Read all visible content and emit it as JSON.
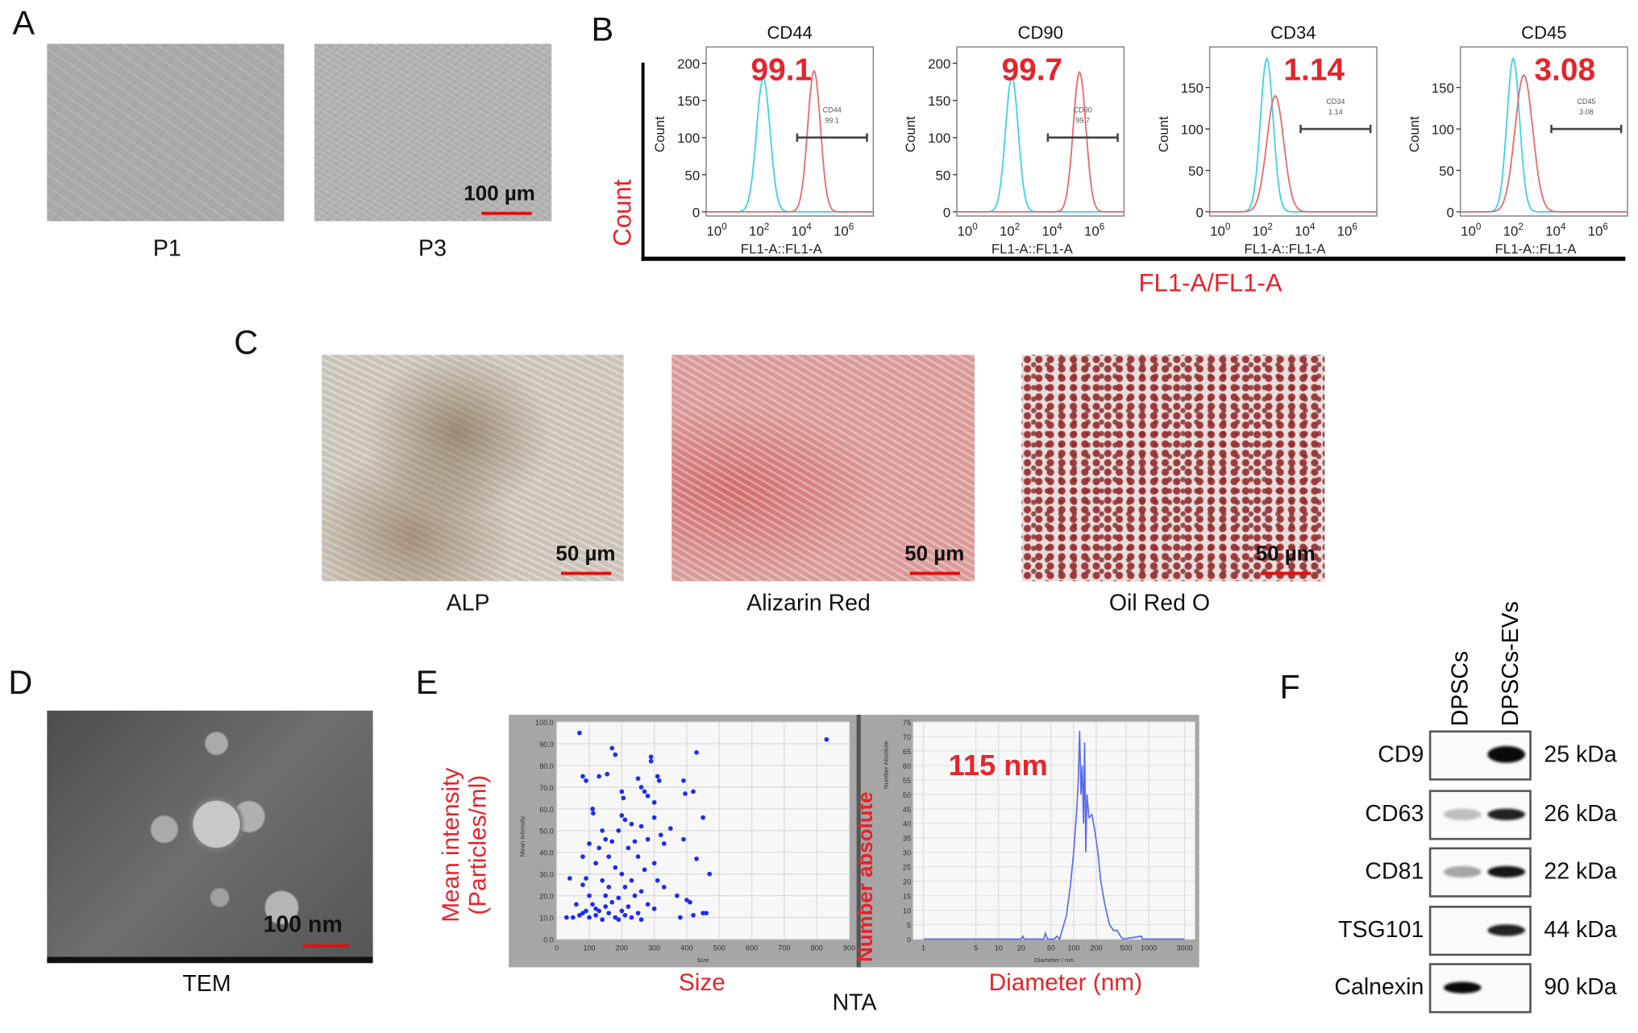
{
  "panels": {
    "A": {
      "label": "A",
      "images": [
        {
          "caption": "P1"
        },
        {
          "caption": "P3"
        }
      ],
      "scale_bar": "100 µm"
    },
    "B": {
      "label": "B",
      "axis_y": "Count",
      "axis_x": "FL1-A/FL1-A"
    },
    "C": {
      "label": "C",
      "images": [
        {
          "caption": "ALP",
          "scale_bar": "50 µm"
        },
        {
          "caption": "Alizarin Red",
          "scale_bar": "50 µm"
        },
        {
          "caption": "Oil Red O",
          "scale_bar": "50 µm"
        }
      ]
    },
    "D": {
      "label": "D",
      "caption": "TEM",
      "scale_bar": "100 nm"
    },
    "E": {
      "label": "E",
      "caption": "NTA",
      "left_ylabel": "Mean intensity",
      "left_ylabel2": "(Particles/ml)",
      "left_xlabel": "Size",
      "right_ylabel": "Number absolute",
      "right_xlabel": "Diameter (nm)",
      "peak_annotation": "115 nm"
    },
    "F": {
      "label": "F",
      "lanes": [
        "DPSCs",
        "DPSCs-EVs"
      ],
      "rows": [
        {
          "protein": "CD9",
          "kda": "25 kDa",
          "intensity": [
            0.0,
            1.0
          ]
        },
        {
          "protein": "CD63",
          "kda": "26 kDa",
          "intensity": [
            0.25,
            0.9
          ]
        },
        {
          "protein": "CD81",
          "kda": "22 kDa",
          "intensity": [
            0.35,
            0.95
          ]
        },
        {
          "protein": "TSG101",
          "kda": "44 kDa",
          "intensity": [
            0.0,
            0.9
          ]
        },
        {
          "protein": "Calnexin",
          "kda": "90 kDa",
          "intensity": [
            1.0,
            0.0
          ]
        }
      ]
    }
  },
  "chart_data": [
    {
      "type": "line",
      "title": "CD44",
      "xlabel": "FL1-A::FL1-A",
      "ylabel": "Count",
      "xscale": "log",
      "xticks": [
        "10^0",
        "10^2",
        "10^4",
        "10^6"
      ],
      "xtick_exp": [
        0,
        2,
        4,
        6
      ],
      "yticks": [
        0,
        50,
        100,
        150,
        200
      ],
      "ylim": [
        0,
        222
      ],
      "percent_label": "99.1",
      "gate_label": "CD44",
      "gate_value": "99.1",
      "gate_log10": [
        3.8,
        7.1
      ],
      "gate_count": 100,
      "series": [
        {
          "name": "isotype",
          "color": "#3fd0e8",
          "peak_log10": 2.2,
          "peak_count": 180,
          "sd_log10": 0.32
        },
        {
          "name": "stained",
          "color": "#e86a6a",
          "peak_log10": 4.6,
          "peak_count": 190,
          "sd_log10": 0.3
        }
      ]
    },
    {
      "type": "line",
      "title": "CD90",
      "xlabel": "FL1-A::FL1-A",
      "ylabel": "Count",
      "xscale": "log",
      "xticks": [
        "10^0",
        "10^2",
        "10^4",
        "10^6"
      ],
      "xtick_exp": [
        0,
        2,
        4,
        6
      ],
      "yticks": [
        0,
        50,
        100,
        150,
        200
      ],
      "ylim": [
        0,
        222
      ],
      "percent_label": "99.7",
      "gate_label": "CD90",
      "gate_value": "99.7",
      "gate_log10": [
        3.8,
        7.1
      ],
      "gate_count": 100,
      "series": [
        {
          "name": "isotype",
          "color": "#3fd0e8",
          "peak_log10": 2.1,
          "peak_count": 182,
          "sd_log10": 0.3
        },
        {
          "name": "stained",
          "color": "#e86a6a",
          "peak_log10": 5.3,
          "peak_count": 188,
          "sd_log10": 0.3
        }
      ]
    },
    {
      "type": "line",
      "title": "CD34",
      "xlabel": "FL1-A::FL1-A",
      "ylabel": "Count",
      "xscale": "log",
      "xticks": [
        "10^0",
        "10^2",
        "10^4",
        "10^6"
      ],
      "xtick_exp": [
        0,
        2,
        4,
        6
      ],
      "yticks": [
        0,
        50,
        100,
        150
      ],
      "ylim": [
        0,
        199
      ],
      "percent_label": "1.14",
      "gate_label": "CD34",
      "gate_value": "1.14",
      "gate_log10": [
        3.8,
        7.1
      ],
      "gate_count": 100,
      "series": [
        {
          "name": "isotype",
          "color": "#3fd0e8",
          "peak_log10": 2.2,
          "peak_count": 185,
          "sd_log10": 0.3
        },
        {
          "name": "stained",
          "color": "#e86a6a",
          "peak_log10": 2.6,
          "peak_count": 140,
          "sd_log10": 0.4
        }
      ]
    },
    {
      "type": "line",
      "title": "CD45",
      "xlabel": "FL1-A::FL1-A",
      "ylabel": "Count",
      "xscale": "log",
      "xticks": [
        "10^0",
        "10^2",
        "10^4",
        "10^6"
      ],
      "xtick_exp": [
        0,
        2,
        4,
        6
      ],
      "yticks": [
        0,
        50,
        100,
        150
      ],
      "ylim": [
        0,
        199
      ],
      "percent_label": "3.08",
      "gate_label": "CD45",
      "gate_value": "3.08",
      "gate_log10": [
        3.8,
        7.1
      ],
      "gate_count": 100,
      "series": [
        {
          "name": "isotype",
          "color": "#3fd0e8",
          "peak_log10": 2.0,
          "peak_count": 185,
          "sd_log10": 0.3
        },
        {
          "name": "stained",
          "color": "#e86a6a",
          "peak_log10": 2.5,
          "peak_count": 165,
          "sd_log10": 0.42
        }
      ]
    },
    {
      "type": "scatter",
      "title": "",
      "xlabel": "Size",
      "ylabel": "Mean Intensity",
      "xlim": [
        0,
        900
      ],
      "ylim": [
        0,
        100
      ],
      "grid": true,
      "xticks": [
        "0",
        "100",
        "200",
        "300",
        "400",
        "500",
        "600",
        "700",
        "800",
        "900"
      ],
      "yticks": [
        "0.0",
        "10.0",
        "20.0",
        "30.0",
        "40.0",
        "50.0",
        "60.0",
        "70.0",
        "80.0",
        "90.0",
        "100.0"
      ],
      "points": [
        [
          70,
          95
        ],
        [
          830,
          92
        ],
        [
          170,
          88
        ],
        [
          180,
          85
        ],
        [
          290,
          84
        ],
        [
          290,
          82
        ],
        [
          430,
          86
        ],
        [
          80,
          75
        ],
        [
          90,
          73
        ],
        [
          130,
          75
        ],
        [
          155,
          76
        ],
        [
          250,
          74
        ],
        [
          310,
          75
        ],
        [
          315,
          73
        ],
        [
          390,
          73
        ],
        [
          395,
          67
        ],
        [
          420,
          68
        ],
        [
          260,
          70
        ],
        [
          270,
          68
        ],
        [
          280,
          66
        ],
        [
          200,
          68
        ],
        [
          205,
          65
        ],
        [
          300,
          63
        ],
        [
          110,
          60
        ],
        [
          112,
          58
        ],
        [
          200,
          57
        ],
        [
          300,
          56
        ],
        [
          450,
          56
        ],
        [
          210,
          55
        ],
        [
          230,
          53
        ],
        [
          260,
          52
        ],
        [
          190,
          50
        ],
        [
          140,
          50
        ],
        [
          350,
          51
        ],
        [
          320,
          48
        ],
        [
          390,
          46
        ],
        [
          150,
          46
        ],
        [
          170,
          45
        ],
        [
          240,
          45
        ],
        [
          280,
          46
        ],
        [
          100,
          44
        ],
        [
          130,
          42
        ],
        [
          220,
          42
        ],
        [
          330,
          44
        ],
        [
          80,
          38
        ],
        [
          160,
          38
        ],
        [
          250,
          38
        ],
        [
          300,
          35
        ],
        [
          430,
          37
        ],
        [
          120,
          35
        ],
        [
          180,
          33
        ],
        [
          200,
          30
        ],
        [
          270,
          32
        ],
        [
          470,
          30
        ],
        [
          40,
          28
        ],
        [
          90,
          28
        ],
        [
          140,
          27
        ],
        [
          230,
          27
        ],
        [
          310,
          27
        ],
        [
          80,
          25
        ],
        [
          160,
          24
        ],
        [
          210,
          24
        ],
        [
          260,
          22
        ],
        [
          330,
          24
        ],
        [
          100,
          20
        ],
        [
          150,
          20
        ],
        [
          190,
          19
        ],
        [
          240,
          20
        ],
        [
          370,
          20
        ],
        [
          400,
          18
        ],
        [
          410,
          17
        ],
        [
          60,
          16
        ],
        [
          110,
          16
        ],
        [
          170,
          17
        ],
        [
          220,
          15
        ],
        [
          280,
          16
        ],
        [
          90,
          13
        ],
        [
          130,
          13
        ],
        [
          160,
          12
        ],
        [
          200,
          13
        ],
        [
          250,
          12
        ],
        [
          300,
          14
        ],
        [
          70,
          11
        ],
        [
          120,
          11
        ],
        [
          180,
          10
        ],
        [
          230,
          10
        ],
        [
          50,
          10
        ],
        [
          100,
          10
        ],
        [
          140,
          9
        ],
        [
          190,
          9
        ],
        [
          260,
          9
        ],
        [
          380,
          10
        ],
        [
          420,
          11
        ],
        [
          450,
          12
        ],
        [
          460,
          12
        ],
        [
          30,
          10
        ],
        [
          120,
          14
        ],
        [
          150,
          15
        ],
        [
          80,
          12
        ],
        [
          210,
          11
        ]
      ]
    },
    {
      "type": "line",
      "title": "",
      "xlabel": "Diameter / nm",
      "ylabel": "Number Absolute",
      "xscale": "log",
      "xlim": [
        1,
        3000
      ],
      "ylim": [
        0,
        75
      ],
      "grid": true,
      "xticks": [
        "1",
        "5",
        "10",
        "20",
        "50",
        "100",
        "200",
        "500",
        "1000",
        "3000"
      ],
      "yticks": [
        "0",
        "5",
        "10",
        "15",
        "20",
        "25",
        "30",
        "35",
        "40",
        "45",
        "50",
        "55",
        "60",
        "65",
        "70",
        "75"
      ],
      "x": [
        1,
        5,
        20,
        21,
        22,
        40,
        42,
        45,
        55,
        60,
        65,
        70,
        80,
        90,
        100,
        110,
        115,
        120,
        125,
        130,
        135,
        140,
        145,
        150,
        160,
        175,
        190,
        210,
        230,
        260,
        300,
        340,
        380,
        420,
        450,
        800,
        820,
        3000
      ],
      "y": [
        0,
        0,
        0,
        1,
        0,
        0,
        2,
        0,
        0,
        1,
        0,
        3,
        8,
        18,
        30,
        45,
        55,
        72,
        50,
        60,
        40,
        68,
        30,
        50,
        42,
        43,
        38,
        30,
        20,
        12,
        5,
        3,
        3,
        1,
        0,
        1,
        0,
        0
      ],
      "color": "#5a6cf0"
    }
  ]
}
